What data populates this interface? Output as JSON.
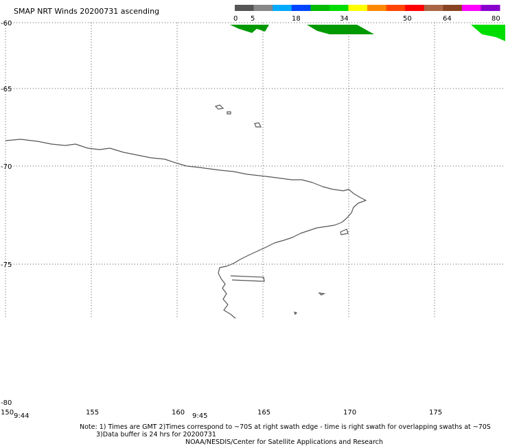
{
  "title": "SMAP NRT Winds 20200731 ascending",
  "colorbar": {
    "labels": [
      "0",
      "5",
      "18",
      "34",
      "50",
      "64",
      "80"
    ],
    "colors": [
      "#555555",
      "#888888",
      "#00aaff",
      "#0044ff",
      "#00bb00",
      "#00dd00",
      "#ffff00",
      "#ff8800",
      "#ff4400",
      "#ff0000",
      "#aa6644",
      "#884422",
      "#ff00ff",
      "#8800cc"
    ]
  },
  "map": {
    "lon_labels": [
      "150",
      "155",
      "160",
      "165",
      "170",
      "175"
    ],
    "lat_labels": [
      "-60",
      "-65",
      "-70",
      "-75",
      "-80"
    ],
    "times": [
      "9:44",
      "9:45"
    ],
    "swath_colors": [
      "#009900",
      "#00dd00"
    ]
  },
  "notes": {
    "line1": "Note: 1) Times are GMT 2)Times correspond to ~70S at right swath edge - time is right swath for overlapping swaths at ~70S",
    "line2": "3)Data buffer is 24 hrs for 20200731",
    "line3": "NOAA/NESDIS/Center for Satellite Applications and Research"
  }
}
